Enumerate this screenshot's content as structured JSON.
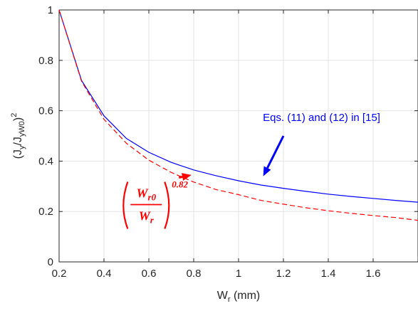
{
  "chart_data": {
    "type": "line",
    "xlim": [
      0.2,
      1.8
    ],
    "ylim": [
      0,
      1
    ],
    "xticks": [
      0.2,
      0.4,
      0.6,
      0.8,
      1,
      1.2,
      1.4,
      1.6
    ],
    "xtick_labels": [
      "0.2",
      "0.4",
      "0.6",
      "0.8",
      "1",
      "1.2",
      "1.4",
      "1.6"
    ],
    "yticks": [
      0,
      0.2,
      0.4,
      0.6,
      0.8,
      1
    ],
    "ytick_labels": [
      "0",
      "0.2",
      "0.4",
      "0.6",
      "0.8",
      "1"
    ],
    "grid": true,
    "xlabel": {
      "main": "W",
      "sub": "r",
      "rest": " (mm)"
    },
    "ylabel": {
      "open": "(J",
      "sub1": "y",
      "mid": "/J",
      "sub2": "yW0",
      "close": ")",
      "sup": "2"
    },
    "series": [
      {
        "color": "#0000ff",
        "style": "solid",
        "x": [
          0.2,
          0.3,
          0.4,
          0.5,
          0.6,
          0.7,
          0.8,
          0.9,
          1.0,
          1.1,
          1.2,
          1.3,
          1.4,
          1.5,
          1.6,
          1.7,
          1.8
        ],
        "y": [
          1.0,
          0.72,
          0.58,
          0.49,
          0.435,
          0.395,
          0.365,
          0.342,
          0.322,
          0.305,
          0.292,
          0.28,
          0.269,
          0.26,
          0.252,
          0.244,
          0.237
        ]
      },
      {
        "color": "#ff0000",
        "style": "dashed",
        "x": [
          0.2,
          0.3,
          0.4,
          0.5,
          0.6,
          0.7,
          0.8,
          0.9,
          1.0,
          1.1,
          1.2,
          1.3,
          1.4,
          1.5,
          1.6,
          1.7,
          1.8
        ],
        "y": [
          1.0,
          0.717,
          0.566,
          0.471,
          0.404,
          0.355,
          0.317,
          0.287,
          0.267,
          0.244,
          0.229,
          0.215,
          0.203,
          0.193,
          0.184,
          0.176,
          0.165
        ]
      }
    ],
    "annotations": [
      {
        "text": "Eqs. (11) and (12) in [15]",
        "color": "#0000ff",
        "arrow_to": [
          1.11,
          0.34
        ],
        "text_at": [
          1.37,
          0.56
        ]
      },
      {
        "formula": {
          "numerator": "W",
          "numerator_sub": "r0",
          "denominator": "W",
          "denominator_sub": "r",
          "exponent": "0.82"
        },
        "color": "#ff0000",
        "arrow_to": [
          0.79,
          0.345
        ],
        "text_at": [
          0.62,
          0.25
        ]
      }
    ]
  }
}
